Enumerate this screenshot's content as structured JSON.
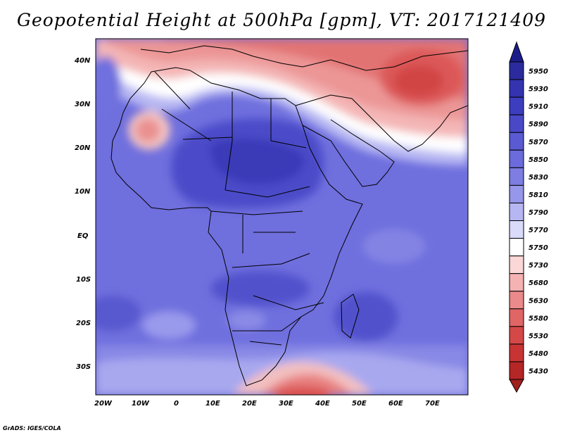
{
  "title": "Geopotential Height at 500hPa [gpm], VT: 2017121409",
  "map": {
    "variable": "Geopotential Height",
    "level": "500hPa",
    "units": "gpm",
    "valid_time": "2017121409",
    "lat_labels": [
      "40N",
      "30N",
      "20N",
      "10N",
      "EQ",
      "10S",
      "20S",
      "30S"
    ],
    "lon_labels": [
      "20W",
      "10W",
      "0",
      "10E",
      "20E",
      "30E",
      "40E",
      "50E",
      "60E",
      "70E"
    ]
  },
  "colorbar": {
    "levels": [
      "5950",
      "5930",
      "5910",
      "5890",
      "5870",
      "5850",
      "5830",
      "5810",
      "5790",
      "5770",
      "5750",
      "5730",
      "5680",
      "5630",
      "5580",
      "5530",
      "5480",
      "5430"
    ],
    "colors": [
      "#2b2b9e",
      "#3434b0",
      "#3d3dc0",
      "#4949c8",
      "#5a5ad2",
      "#6b6bdc",
      "#7d7de2",
      "#9696ea",
      "#b6b6f3",
      "#dadafb",
      "#ffffff",
      "#fbd7d7",
      "#f4b2b2",
      "#ea8a8a",
      "#e06666",
      "#d54848",
      "#c83434",
      "#b52626"
    ],
    "top_triangle_color": "#1c1c8a",
    "bottom_triangle_color": "#a01f1f"
  },
  "credit": "GrADS: IGES/COLA"
}
